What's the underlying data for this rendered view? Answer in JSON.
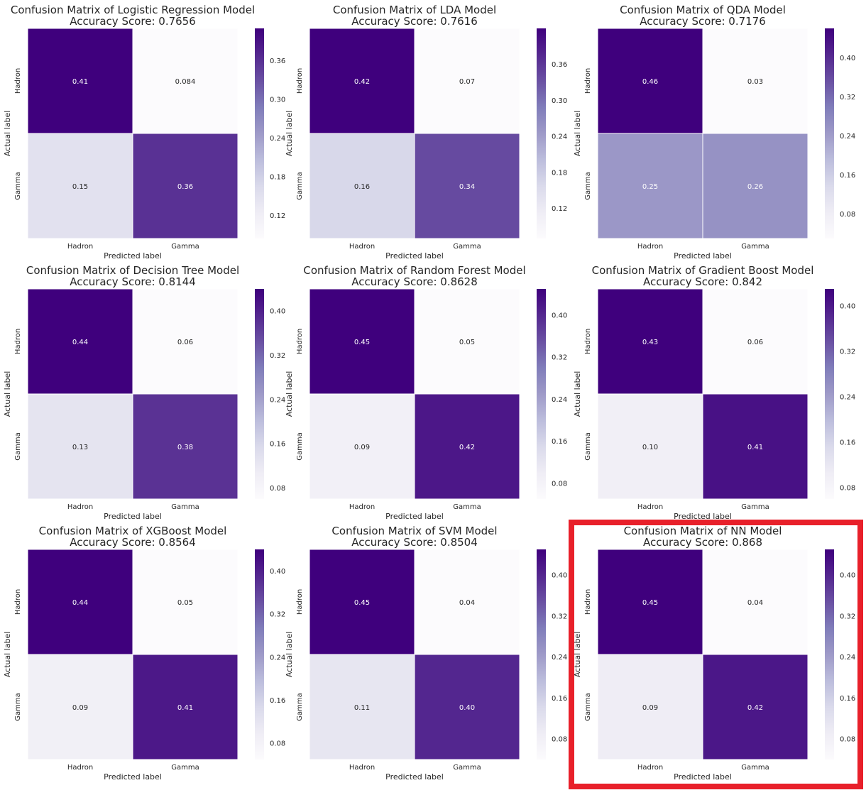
{
  "chart_data": [
    {
      "type": "heatmap",
      "title": "Confusion Matrix of Logistic Regression Model",
      "subtitle": "Accuracy Score: 0.7656",
      "xlabel": "Predicted label",
      "ylabel": "Actual label",
      "x_categories": [
        "Hadron",
        "Gamma"
      ],
      "y_categories": [
        "Hadron",
        "Gamma"
      ],
      "values": [
        [
          0.41,
          0.084
        ],
        [
          0.15,
          0.36
        ]
      ],
      "cell_labels": [
        [
          "0.41",
          "0.084"
        ],
        [
          "0.15",
          "0.36"
        ]
      ],
      "colorbar": {
        "range": [
          0.084,
          0.41
        ],
        "ticks": [
          0.12,
          0.18,
          0.24,
          0.3,
          0.36
        ],
        "tick_labels": [
          "0.12",
          "0.18",
          "0.24",
          "0.30",
          "0.36"
        ]
      }
    },
    {
      "type": "heatmap",
      "title": "Confusion Matrix of LDA Model",
      "subtitle": "Accuracy Score: 0.7616",
      "xlabel": "Predicted label",
      "ylabel": "Actual label",
      "x_categories": [
        "Hadron",
        "Gamma"
      ],
      "y_categories": [
        "Hadron",
        "Gamma"
      ],
      "values": [
        [
          0.42,
          0.07
        ],
        [
          0.16,
          0.34
        ]
      ],
      "cell_labels": [
        [
          "0.42",
          "0.07"
        ],
        [
          "0.16",
          "0.34"
        ]
      ],
      "colorbar": {
        "range": [
          0.07,
          0.42
        ],
        "ticks": [
          0.12,
          0.18,
          0.24,
          0.3,
          0.36
        ],
        "tick_labels": [
          "0.12",
          "0.18",
          "0.24",
          "0.30",
          "0.36"
        ]
      }
    },
    {
      "type": "heatmap",
      "title": "Confusion Matrix of QDA Model",
      "subtitle": "Accuracy Score: 0.7176",
      "xlabel": "Predicted label",
      "ylabel": "Actual label",
      "x_categories": [
        "Hadron",
        "Gamma"
      ],
      "y_categories": [
        "Hadron",
        "Gamma"
      ],
      "values": [
        [
          0.46,
          0.03
        ],
        [
          0.25,
          0.26
        ]
      ],
      "cell_labels": [
        [
          "0.46",
          "0.03"
        ],
        [
          "0.25",
          "0.26"
        ]
      ],
      "colorbar": {
        "range": [
          0.03,
          0.46
        ],
        "ticks": [
          0.08,
          0.16,
          0.24,
          0.32,
          0.4
        ],
        "tick_labels": [
          "0.08",
          "0.16",
          "0.24",
          "0.32",
          "0.40"
        ]
      }
    },
    {
      "type": "heatmap",
      "title": "Confusion Matrix of Decision Tree Model",
      "subtitle": "Accuracy Score: 0.8144",
      "xlabel": "Predicted label",
      "ylabel": "Actual label",
      "x_categories": [
        "Hadron",
        "Gamma"
      ],
      "y_categories": [
        "Hadron",
        "Gamma"
      ],
      "values": [
        [
          0.44,
          0.06
        ],
        [
          0.13,
          0.38
        ]
      ],
      "cell_labels": [
        [
          "0.44",
          "0.06"
        ],
        [
          "0.13",
          "0.38"
        ]
      ],
      "colorbar": {
        "range": [
          0.06,
          0.44
        ],
        "ticks": [
          0.08,
          0.16,
          0.24,
          0.32,
          0.4
        ],
        "tick_labels": [
          "0.08",
          "0.16",
          "0.24",
          "0.32",
          "0.40"
        ]
      }
    },
    {
      "type": "heatmap",
      "title": "Confusion Matrix of Random Forest Model",
      "subtitle": "Accuracy Score: 0.8628",
      "xlabel": "Predicted label",
      "ylabel": "Actual label",
      "x_categories": [
        "Hadron",
        "Gamma"
      ],
      "y_categories": [
        "Hadron",
        "Gamma"
      ],
      "values": [
        [
          0.45,
          0.05
        ],
        [
          0.09,
          0.42
        ]
      ],
      "cell_labels": [
        [
          "0.45",
          "0.05"
        ],
        [
          "0.09",
          "0.42"
        ]
      ],
      "colorbar": {
        "range": [
          0.05,
          0.45
        ],
        "ticks": [
          0.08,
          0.16,
          0.24,
          0.32,
          0.4
        ],
        "tick_labels": [
          "0.08",
          "0.16",
          "0.24",
          "0.32",
          "0.40"
        ]
      }
    },
    {
      "type": "heatmap",
      "title": "Confusion Matrix of Gradient Boost Model",
      "subtitle": "Accuracy Score: 0.842",
      "xlabel": "Predicted label",
      "ylabel": "Actual label",
      "x_categories": [
        "Hadron",
        "Gamma"
      ],
      "y_categories": [
        "Hadron",
        "Gamma"
      ],
      "values": [
        [
          0.43,
          0.06
        ],
        [
          0.1,
          0.41
        ]
      ],
      "cell_labels": [
        [
          "0.43",
          "0.06"
        ],
        [
          "0.10",
          "0.41"
        ]
      ],
      "colorbar": {
        "range": [
          0.06,
          0.43
        ],
        "ticks": [
          0.08,
          0.16,
          0.24,
          0.32,
          0.4
        ],
        "tick_labels": [
          "0.08",
          "0.16",
          "0.24",
          "0.32",
          "0.40"
        ]
      }
    },
    {
      "type": "heatmap",
      "title": "Confusion Matrix of XGBoost Model",
      "subtitle": "Accuracy Score: 0.8564",
      "xlabel": "Predicted label",
      "ylabel": "Actual label",
      "x_categories": [
        "Hadron",
        "Gamma"
      ],
      "y_categories": [
        "Hadron",
        "Gamma"
      ],
      "values": [
        [
          0.44,
          0.05
        ],
        [
          0.09,
          0.41
        ]
      ],
      "cell_labels": [
        [
          "0.44",
          "0.05"
        ],
        [
          "0.09",
          "0.41"
        ]
      ],
      "colorbar": {
        "range": [
          0.05,
          0.44
        ],
        "ticks": [
          0.08,
          0.16,
          0.24,
          0.32,
          0.4
        ],
        "tick_labels": [
          "0.08",
          "0.16",
          "0.24",
          "0.32",
          "0.40"
        ]
      }
    },
    {
      "type": "heatmap",
      "title": "Confusion Matrix of SVM Model",
      "subtitle": "Accuracy Score: 0.8504",
      "xlabel": "Predicted label",
      "ylabel": "Actual label",
      "x_categories": [
        "Hadron",
        "Gamma"
      ],
      "y_categories": [
        "Hadron",
        "Gamma"
      ],
      "values": [
        [
          0.45,
          0.04
        ],
        [
          0.11,
          0.4
        ]
      ],
      "cell_labels": [
        [
          "0.45",
          "0.04"
        ],
        [
          "0.11",
          "0.40"
        ]
      ],
      "colorbar": {
        "range": [
          0.04,
          0.45
        ],
        "ticks": [
          0.08,
          0.16,
          0.24,
          0.32,
          0.4
        ],
        "tick_labels": [
          "0.08",
          "0.16",
          "0.24",
          "0.32",
          "0.40"
        ]
      }
    },
    {
      "type": "heatmap",
      "title": "Confusion Matrix of NN Model",
      "subtitle": "Accuracy Score: 0.868",
      "xlabel": "Predicted label",
      "ylabel": "Actual label",
      "x_categories": [
        "Hadron",
        "Gamma"
      ],
      "y_categories": [
        "Hadron",
        "Gamma"
      ],
      "values": [
        [
          0.45,
          0.04
        ],
        [
          0.09,
          0.42
        ]
      ],
      "cell_labels": [
        [
          "0.45",
          "0.04"
        ],
        [
          "0.09",
          "0.42"
        ]
      ],
      "colorbar": {
        "range": [
          0.04,
          0.45
        ],
        "ticks": [
          0.08,
          0.16,
          0.24,
          0.32,
          0.4
        ],
        "tick_labels": [
          "0.08",
          "0.16",
          "0.24",
          "0.32",
          "0.40"
        ]
      },
      "highlighted": true
    }
  ],
  "colormap": {
    "name": "Purples",
    "low": "#fcfbfd",
    "high": "#3f007d"
  },
  "highlight_color": "#e8202a"
}
